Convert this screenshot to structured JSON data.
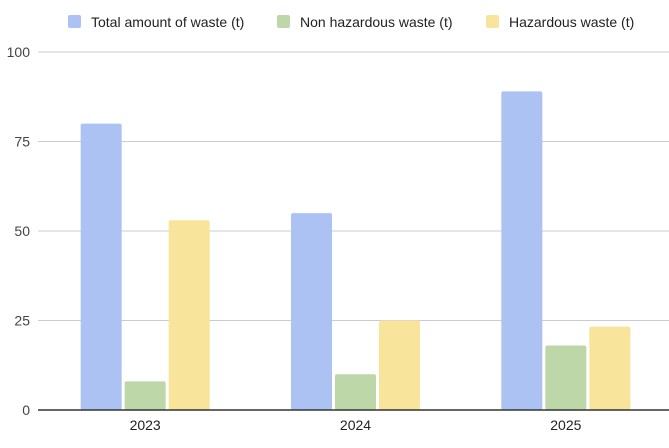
{
  "chart_data": {
    "type": "bar",
    "title": "",
    "xlabel": "",
    "ylabel": "",
    "categories": [
      "2023",
      "2024",
      "2025"
    ],
    "series": [
      {
        "name": "Total amount of waste (t)",
        "values": [
          80,
          55,
          89
        ],
        "color": "#abc2f2"
      },
      {
        "name": "Non hazardous waste (t)",
        "values": [
          8,
          10,
          18
        ],
        "color": "#bdd7a9"
      },
      {
        "name": "Hazardous waste (t)",
        "values": [
          53,
          25,
          23.3
        ],
        "color": "#f8e49b"
      }
    ],
    "ylim": [
      0,
      100
    ],
    "yticks": [
      "0",
      "25",
      "50",
      "75",
      "100"
    ],
    "grid": true,
    "legend_position": "top"
  }
}
